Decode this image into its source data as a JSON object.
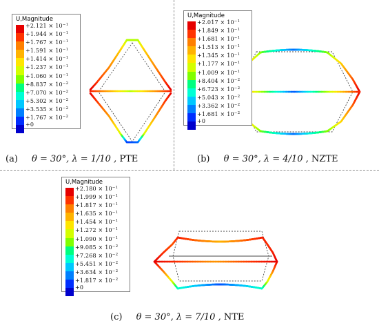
{
  "colors": {
    "scale": [
      "#e60000",
      "#ff3300",
      "#ff8000",
      "#ffb300",
      "#ffe600",
      "#d4ff00",
      "#80ff00",
      "#00ff80",
      "#00ffd5",
      "#00c8ff",
      "#0080ff",
      "#002eff",
      "#0000cd"
    ],
    "reference_outline": "#444444"
  },
  "panels": [
    {
      "legend": {
        "title": "U,Magnitude",
        "values": [
          "+2.121 × 10",
          "+1.944 × 10",
          "+1.767 × 10",
          "+1.591 × 10",
          "+1.414 × 10",
          "+1.237 × 10",
          "+1.060 × 10",
          "+8.837 × 10",
          "+7.070 × 10",
          "+5.302 × 10",
          "+3.535 × 10",
          "+1.767 × 10",
          "+0"
        ],
        "exponents": [
          "−1",
          "−1",
          "−1",
          "−1",
          "−1",
          "−1",
          "−1",
          "−2",
          "−2",
          "−2",
          "−2",
          "−2",
          ""
        ]
      },
      "caption": {
        "label": "(a)",
        "equation": "θ = 30°, λ = 1/10 ,",
        "mode": "PTE"
      }
    },
    {
      "legend": {
        "title": "U,Magnitude",
        "values": [
          "+2.017 × 10",
          "+1.849 × 10",
          "+1.681 × 10",
          "+1.513 × 10",
          "+1.345 × 10",
          "+1.177 × 10",
          "+1.009 × 10",
          "+8.404 × 10",
          "+6.723 × 10",
          "+5.043 × 10",
          "+3.362 × 10",
          "+1.681 × 10",
          "+0"
        ],
        "exponents": [
          "−1",
          "−1",
          "−1",
          "−1",
          "−1",
          "−1",
          "−1",
          "−2",
          "−2",
          "−2",
          "−2",
          "−2",
          ""
        ]
      },
      "caption": {
        "label": "(b)",
        "equation": "θ = 30°, λ = 4/10 ,",
        "mode": "NZTE"
      }
    },
    {
      "legend": {
        "title": "U,Magnitude",
        "values": [
          "+2.180 × 10",
          "+1.999 × 10",
          "+1.817 × 10",
          "+1.635 × 10",
          "+1.454 × 10",
          "+1.272 × 10",
          "+1.090 × 10",
          "+9.085 × 10",
          "+7.268 × 10",
          "+5.451 × 10",
          "+3.634 × 10",
          "+1.817 × 10",
          "+0"
        ],
        "exponents": [
          "−1",
          "−1",
          "−1",
          "−1",
          "−1",
          "−1",
          "−1",
          "−2",
          "−2",
          "−2",
          "−2",
          "−2",
          ""
        ]
      },
      "caption": {
        "label": "(c)",
        "equation": "θ = 30°, λ = 7/10 ,",
        "mode": "NTE"
      }
    }
  ]
}
